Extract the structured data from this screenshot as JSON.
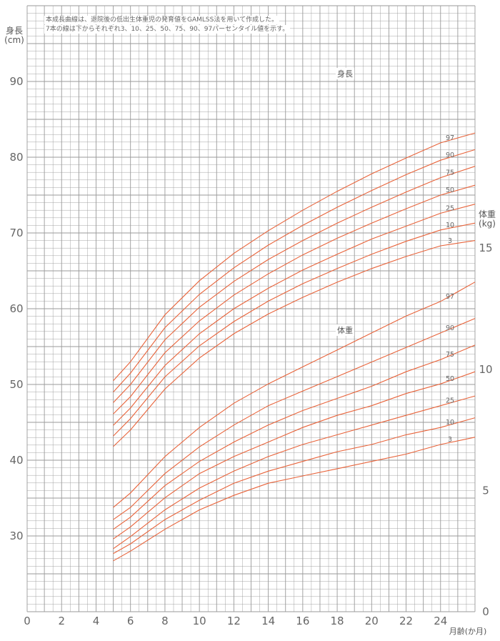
{
  "notes": {
    "line1": "本成長曲線は、退院後の低出生体重児の発育値をGAMLSS法を用いて作成した。",
    "line2": "7本の線は下からそれぞれ3、10、25、50、75、90、97パーセンタイル値を示す。"
  },
  "axes": {
    "left_title": "身長",
    "left_unit": "(cm)",
    "right_title": "体重",
    "right_unit": "(kg)",
    "x_title": "月齢(か月)"
  },
  "sections": {
    "height": "身長",
    "weight": "体重"
  },
  "colors": {
    "grid": "#9a9a9a",
    "curve": "#e8633a",
    "tick_text": "#666666"
  },
  "chart_data": {
    "type": "line",
    "x_range": [
      0,
      26
    ],
    "x_ticks": [
      0,
      2,
      4,
      6,
      8,
      10,
      12,
      14,
      16,
      18,
      20,
      22,
      24
    ],
    "x_unit": "月齢(か月)",
    "height_axis": {
      "range": [
        20,
        100
      ],
      "ticks": [
        30,
        40,
        50,
        60,
        70,
        80,
        90
      ],
      "unit": "cm"
    },
    "weight_axis": {
      "range": [
        0,
        25
      ],
      "ticks": [
        0,
        5,
        10,
        15
      ],
      "unit": "kg"
    },
    "percentile_labels": [
      "3",
      "10",
      "25",
      "50",
      "75",
      "90",
      "97"
    ],
    "height_series": [
      {
        "name": "3",
        "x": [
          5,
          6,
          8,
          10,
          12,
          14,
          16,
          18,
          20,
          22,
          24,
          26
        ],
        "values": [
          41.8,
          44.0,
          49.4,
          53.5,
          56.7,
          59.3,
          61.5,
          63.5,
          65.3,
          66.9,
          68.3,
          69.0
        ]
      },
      {
        "name": "10",
        "x": [
          5,
          6,
          8,
          10,
          12,
          14,
          16,
          18,
          20,
          22,
          24,
          26
        ],
        "values": [
          43.2,
          45.5,
          51.0,
          55.1,
          58.3,
          61.0,
          63.3,
          65.3,
          67.2,
          68.9,
          70.4,
          71.3
        ]
      },
      {
        "name": "25",
        "x": [
          5,
          6,
          8,
          10,
          12,
          14,
          16,
          18,
          20,
          22,
          24,
          26
        ],
        "values": [
          44.6,
          46.9,
          52.5,
          56.7,
          60.0,
          62.7,
          65.1,
          67.2,
          69.2,
          70.9,
          72.6,
          73.8
        ]
      },
      {
        "name": "50",
        "x": [
          5,
          6,
          8,
          10,
          12,
          14,
          16,
          18,
          20,
          22,
          24,
          26
        ],
        "values": [
          46.1,
          48.4,
          54.2,
          58.4,
          61.8,
          64.6,
          67.1,
          69.3,
          71.3,
          73.2,
          75.0,
          76.3
        ]
      },
      {
        "name": "75",
        "x": [
          5,
          6,
          8,
          10,
          12,
          14,
          16,
          18,
          20,
          22,
          24,
          26
        ],
        "values": [
          47.6,
          50.0,
          55.9,
          60.2,
          63.6,
          66.5,
          69.0,
          71.3,
          73.4,
          75.4,
          77.3,
          78.8
        ]
      },
      {
        "name": "90",
        "x": [
          5,
          6,
          8,
          10,
          12,
          14,
          16,
          18,
          20,
          22,
          24,
          26
        ],
        "values": [
          49.0,
          51.5,
          57.5,
          61.9,
          65.4,
          68.4,
          71.0,
          73.4,
          75.6,
          77.7,
          79.6,
          81.0
        ]
      },
      {
        "name": "97",
        "x": [
          5,
          6,
          8,
          10,
          12,
          14,
          16,
          18,
          20,
          22,
          24,
          26
        ],
        "values": [
          50.5,
          53.0,
          59.2,
          63.7,
          67.3,
          70.3,
          73.0,
          75.5,
          77.8,
          79.9,
          81.9,
          83.2
        ]
      }
    ],
    "weight_series": [
      {
        "name": "3",
        "x": [
          5,
          6,
          8,
          10,
          12,
          14,
          16,
          18,
          20,
          22,
          24,
          26
        ],
        "values": [
          2.1,
          2.5,
          3.4,
          4.2,
          4.8,
          5.3,
          5.6,
          5.9,
          6.2,
          6.5,
          6.9,
          7.2
        ]
      },
      {
        "name": "10",
        "x": [
          5,
          6,
          8,
          10,
          12,
          14,
          16,
          18,
          20,
          22,
          24,
          26
        ],
        "values": [
          2.4,
          2.8,
          3.8,
          4.6,
          5.3,
          5.8,
          6.2,
          6.6,
          6.9,
          7.3,
          7.6,
          8.0
        ]
      },
      {
        "name": "25",
        "x": [
          5,
          6,
          8,
          10,
          12,
          14,
          16,
          18,
          20,
          22,
          24,
          26
        ],
        "values": [
          2.6,
          3.1,
          4.2,
          5.1,
          5.8,
          6.4,
          6.9,
          7.3,
          7.7,
          8.1,
          8.5,
          8.9
        ]
      },
      {
        "name": "50",
        "x": [
          5,
          6,
          8,
          10,
          12,
          14,
          16,
          18,
          20,
          22,
          24,
          26
        ],
        "values": [
          3.0,
          3.5,
          4.7,
          5.7,
          6.4,
          7.0,
          7.6,
          8.1,
          8.5,
          9.0,
          9.4,
          9.9
        ]
      },
      {
        "name": "75",
        "x": [
          5,
          6,
          8,
          10,
          12,
          14,
          16,
          18,
          20,
          22,
          24,
          26
        ],
        "values": [
          3.4,
          3.9,
          5.2,
          6.2,
          7.0,
          7.7,
          8.3,
          8.8,
          9.3,
          9.9,
          10.4,
          11.0
        ]
      },
      {
        "name": "90",
        "x": [
          5,
          6,
          8,
          10,
          12,
          14,
          16,
          18,
          20,
          22,
          24,
          26
        ],
        "values": [
          3.8,
          4.3,
          5.7,
          6.8,
          7.7,
          8.5,
          9.1,
          9.7,
          10.3,
          10.9,
          11.5,
          12.1
        ]
      },
      {
        "name": "97",
        "x": [
          5,
          6,
          8,
          10,
          12,
          14,
          16,
          18,
          20,
          22,
          24,
          26
        ],
        "values": [
          4.3,
          4.9,
          6.4,
          7.6,
          8.6,
          9.4,
          10.1,
          10.8,
          11.5,
          12.2,
          12.8,
          13.6
        ]
      }
    ]
  }
}
